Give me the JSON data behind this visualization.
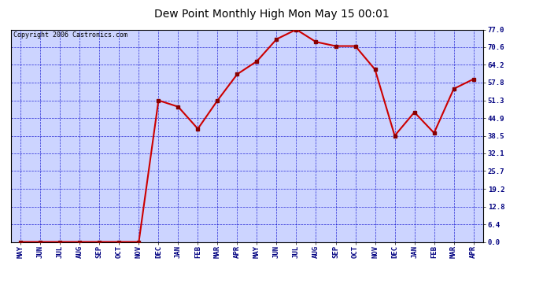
{
  "title": "Dew Point Monthly High Mon May 15 00:01",
  "copyright": "Copyright 2006 Castronics.com",
  "categories": [
    "MAY",
    "JUN",
    "JUL",
    "AUG",
    "SEP",
    "OCT",
    "NOV",
    "DEC",
    "JAN",
    "FEB",
    "MAR",
    "APR",
    "MAY",
    "JUN",
    "JUL",
    "AUG",
    "SEP",
    "OCT",
    "NOV",
    "DEC",
    "JAN",
    "FEB",
    "MAR",
    "APR"
  ],
  "values": [
    0.0,
    0.0,
    0.0,
    0.0,
    0.0,
    0.0,
    0.0,
    51.3,
    49.0,
    41.0,
    51.3,
    60.8,
    65.5,
    73.5,
    77.0,
    72.5,
    71.0,
    71.0,
    62.5,
    38.5,
    47.0,
    39.5,
    55.5,
    59.0
  ],
  "yticks": [
    0.0,
    6.4,
    12.8,
    19.2,
    25.7,
    32.1,
    38.5,
    44.9,
    51.3,
    57.8,
    64.2,
    70.6,
    77.0
  ],
  "ymin": 0.0,
  "ymax": 77.0,
  "line_color": "#cc0000",
  "marker_color": "#880000",
  "bg_color": "#ffffff",
  "plot_bg_color": "#ccd4ff",
  "grid_color": "#0000cc",
  "title_color": "#000000",
  "border_color": "#000000",
  "marker": "s",
  "marker_size": 2.5,
  "line_width": 1.5,
  "title_fontsize": 10,
  "tick_fontsize": 6.5,
  "copyright_fontsize": 6
}
